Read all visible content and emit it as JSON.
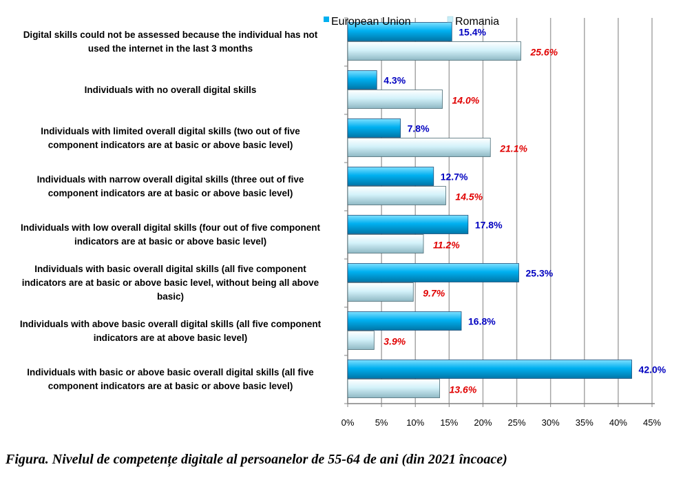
{
  "caption": "Figura. Nivelul de competențe digitale al persoanelor de 55-64 de ani (din 2021 încoace)",
  "chart_data": {
    "type": "bar",
    "orientation": "horizontal",
    "categories": [
      [
        "Digital skills could not be assessed because the individual has not",
        "used the internet in the last 3 months"
      ],
      [
        "Individuals with no overall digital skills"
      ],
      [
        "Individuals with limited overall digital skills (two out of five",
        "component indicators are at basic or above basic level)"
      ],
      [
        "Individuals with narrow overall digital skills (three out of five",
        "component indicators are at basic or above basic level)"
      ],
      [
        "Individuals with low overall digital skills (four out of five component",
        "indicators are at basic or above basic level)"
      ],
      [
        "Individuals with basic overall digital skills (all five component",
        "indicators are at basic or above basic level, without being all above",
        "basic)"
      ],
      [
        "Individuals with above basic overall digital skills (all five component",
        "indicators are at above basic level)"
      ],
      [
        "Individuals with basic or above basic overall digital skills (all five",
        "component indicators are at basic or above basic level)"
      ]
    ],
    "series": [
      {
        "name": "European Union",
        "values": [
          15.4,
          4.3,
          7.8,
          12.7,
          17.8,
          25.3,
          16.8,
          42.0
        ],
        "labels": [
          "15.4%",
          "4.3%",
          "7.8%",
          "12.7%",
          "17.8%",
          "25.3%",
          "16.8%",
          "42.0%"
        ],
        "color": "#00B0F0",
        "label_color": "#0000C0"
      },
      {
        "name": "Romania",
        "values": [
          25.6,
          14.0,
          21.1,
          14.5,
          11.2,
          9.7,
          3.9,
          13.6
        ],
        "labels": [
          "25.6%",
          "14.0%",
          "21.1%",
          "14.5%",
          "11.2%",
          "9.7%",
          "3.9%",
          "13.6%"
        ],
        "color": "#C6EEF8",
        "label_color": "#E00000"
      }
    ],
    "x_ticks": [
      "0%",
      "5%",
      "10%",
      "15%",
      "20%",
      "25%",
      "30%",
      "35%",
      "40%",
      "45%"
    ],
    "xlim": [
      0,
      45
    ],
    "grid": true,
    "legend_position": "top"
  }
}
